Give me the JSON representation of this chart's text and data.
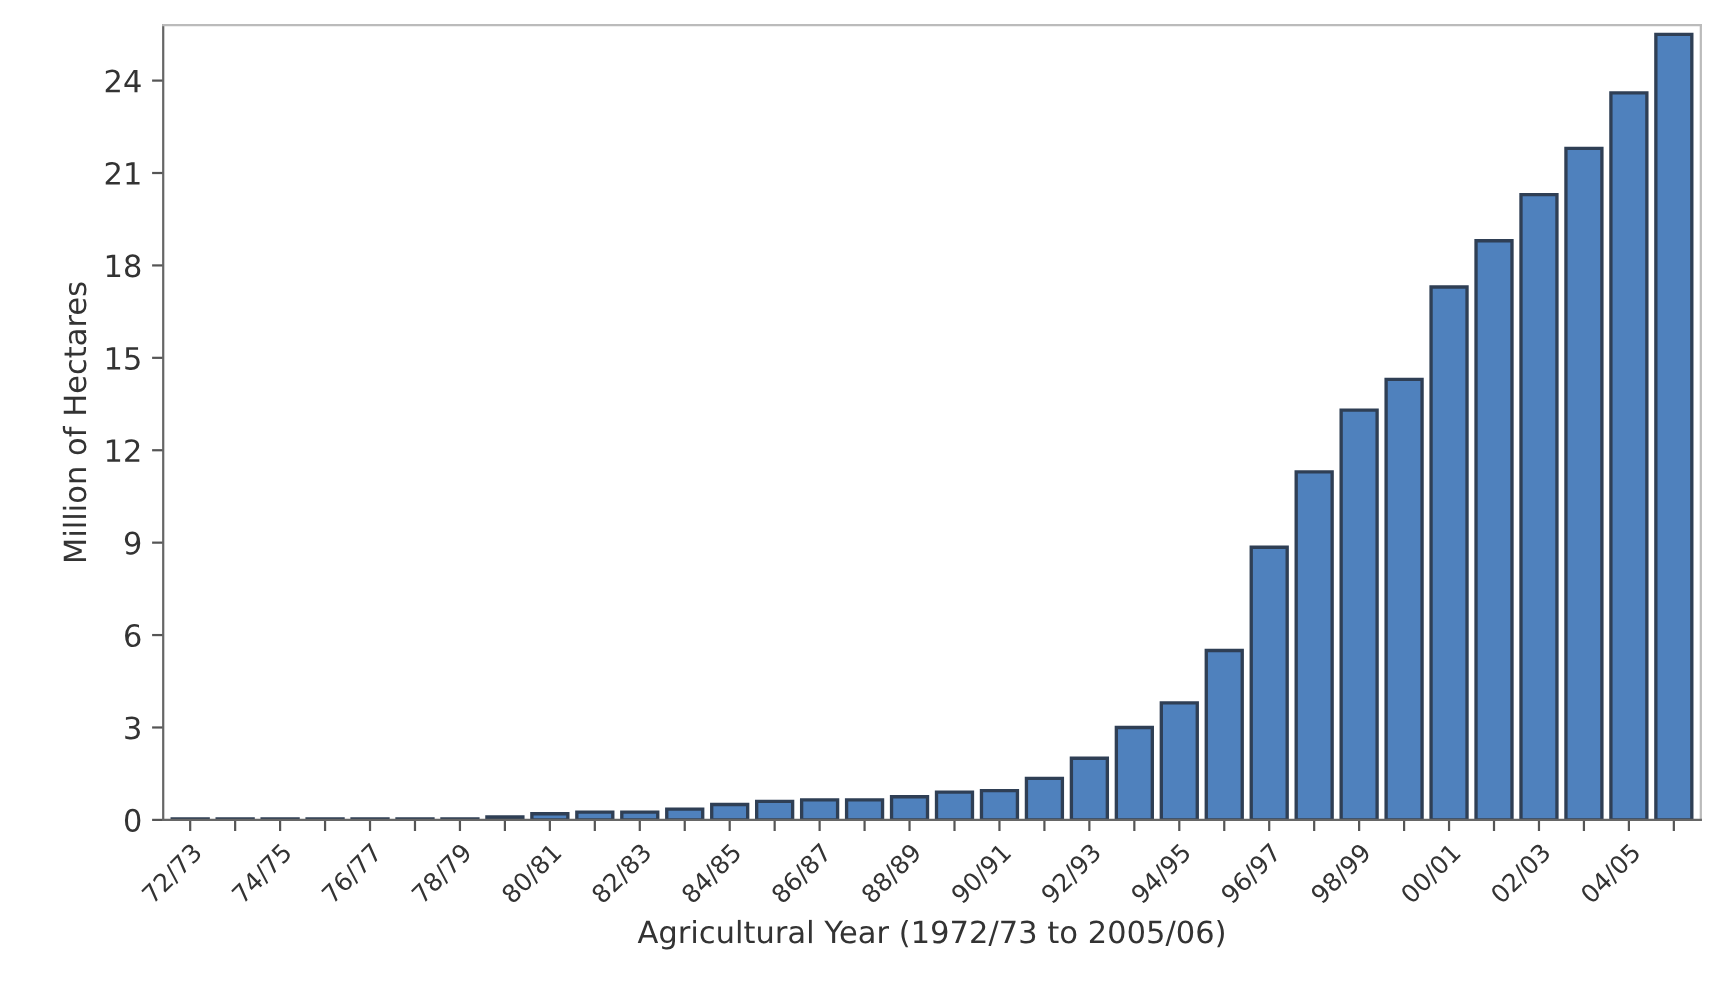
{
  "chart_data": {
    "type": "bar",
    "xlabel": "Agricultural Year (1972/73 to 2005/06)",
    "ylabel": "Million of Hectares",
    "categories": [
      "72/73",
      null,
      "74/75",
      null,
      "76/77",
      null,
      "78/79",
      null,
      "80/81",
      null,
      "82/83",
      null,
      "84/85",
      null,
      "86/87",
      null,
      "88/89",
      null,
      "90/91",
      null,
      "92/93",
      null,
      "94/95",
      null,
      "96/97",
      null,
      "98/99",
      null,
      "00/01",
      null,
      "02/03",
      null,
      "04/05",
      null
    ],
    "values": [
      0.03,
      0.03,
      0.03,
      0.03,
      0.03,
      0.03,
      0.03,
      0.1,
      0.2,
      0.25,
      0.25,
      0.35,
      0.5,
      0.6,
      0.65,
      0.65,
      0.75,
      0.9,
      0.95,
      1.35,
      2.0,
      3.0,
      3.8,
      5.5,
      8.85,
      11.3,
      13.3,
      14.3,
      17.3,
      18.8,
      20.3,
      21.8,
      23.6,
      25.5
    ],
    "color": "#4f81bd",
    "ylim": [
      0,
      25.8
    ],
    "yticks": [
      0,
      3,
      6,
      9,
      12,
      15,
      18,
      21,
      24
    ],
    "grid": false
  }
}
